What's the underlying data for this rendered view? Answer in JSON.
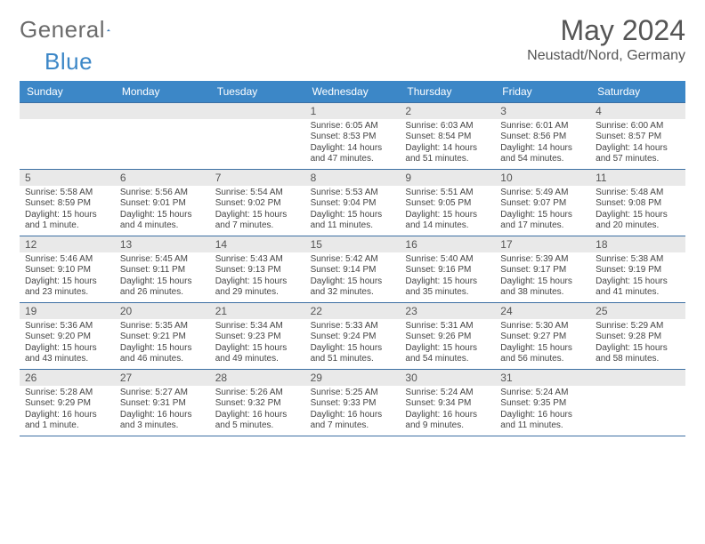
{
  "logo": {
    "word1": "General",
    "word2": "Blue",
    "word1_color": "#7a7a7a",
    "word2_color": "#3c87c7",
    "mark_color": "#2f6fb0"
  },
  "title": "May 2024",
  "location": "Neustadt/Nord, Germany",
  "colors": {
    "header_bar": "#3c87c7",
    "row_border": "#3c6fa3",
    "daynum_bg": "#e9e9e9",
    "text": "#444444",
    "title_color": "#555555"
  },
  "weekdays": [
    "Sunday",
    "Monday",
    "Tuesday",
    "Wednesday",
    "Thursday",
    "Friday",
    "Saturday"
  ],
  "grid": {
    "lead_blanks": 3,
    "days": [
      {
        "n": "1",
        "sunrise": "Sunrise: 6:05 AM",
        "sunset": "Sunset: 8:53 PM",
        "day1": "Daylight: 14 hours",
        "day2": "and 47 minutes."
      },
      {
        "n": "2",
        "sunrise": "Sunrise: 6:03 AM",
        "sunset": "Sunset: 8:54 PM",
        "day1": "Daylight: 14 hours",
        "day2": "and 51 minutes."
      },
      {
        "n": "3",
        "sunrise": "Sunrise: 6:01 AM",
        "sunset": "Sunset: 8:56 PM",
        "day1": "Daylight: 14 hours",
        "day2": "and 54 minutes."
      },
      {
        "n": "4",
        "sunrise": "Sunrise: 6:00 AM",
        "sunset": "Sunset: 8:57 PM",
        "day1": "Daylight: 14 hours",
        "day2": "and 57 minutes."
      },
      {
        "n": "5",
        "sunrise": "Sunrise: 5:58 AM",
        "sunset": "Sunset: 8:59 PM",
        "day1": "Daylight: 15 hours",
        "day2": "and 1 minute."
      },
      {
        "n": "6",
        "sunrise": "Sunrise: 5:56 AM",
        "sunset": "Sunset: 9:01 PM",
        "day1": "Daylight: 15 hours",
        "day2": "and 4 minutes."
      },
      {
        "n": "7",
        "sunrise": "Sunrise: 5:54 AM",
        "sunset": "Sunset: 9:02 PM",
        "day1": "Daylight: 15 hours",
        "day2": "and 7 minutes."
      },
      {
        "n": "8",
        "sunrise": "Sunrise: 5:53 AM",
        "sunset": "Sunset: 9:04 PM",
        "day1": "Daylight: 15 hours",
        "day2": "and 11 minutes."
      },
      {
        "n": "9",
        "sunrise": "Sunrise: 5:51 AM",
        "sunset": "Sunset: 9:05 PM",
        "day1": "Daylight: 15 hours",
        "day2": "and 14 minutes."
      },
      {
        "n": "10",
        "sunrise": "Sunrise: 5:49 AM",
        "sunset": "Sunset: 9:07 PM",
        "day1": "Daylight: 15 hours",
        "day2": "and 17 minutes."
      },
      {
        "n": "11",
        "sunrise": "Sunrise: 5:48 AM",
        "sunset": "Sunset: 9:08 PM",
        "day1": "Daylight: 15 hours",
        "day2": "and 20 minutes."
      },
      {
        "n": "12",
        "sunrise": "Sunrise: 5:46 AM",
        "sunset": "Sunset: 9:10 PM",
        "day1": "Daylight: 15 hours",
        "day2": "and 23 minutes."
      },
      {
        "n": "13",
        "sunrise": "Sunrise: 5:45 AM",
        "sunset": "Sunset: 9:11 PM",
        "day1": "Daylight: 15 hours",
        "day2": "and 26 minutes."
      },
      {
        "n": "14",
        "sunrise": "Sunrise: 5:43 AM",
        "sunset": "Sunset: 9:13 PM",
        "day1": "Daylight: 15 hours",
        "day2": "and 29 minutes."
      },
      {
        "n": "15",
        "sunrise": "Sunrise: 5:42 AM",
        "sunset": "Sunset: 9:14 PM",
        "day1": "Daylight: 15 hours",
        "day2": "and 32 minutes."
      },
      {
        "n": "16",
        "sunrise": "Sunrise: 5:40 AM",
        "sunset": "Sunset: 9:16 PM",
        "day1": "Daylight: 15 hours",
        "day2": "and 35 minutes."
      },
      {
        "n": "17",
        "sunrise": "Sunrise: 5:39 AM",
        "sunset": "Sunset: 9:17 PM",
        "day1": "Daylight: 15 hours",
        "day2": "and 38 minutes."
      },
      {
        "n": "18",
        "sunrise": "Sunrise: 5:38 AM",
        "sunset": "Sunset: 9:19 PM",
        "day1": "Daylight: 15 hours",
        "day2": "and 41 minutes."
      },
      {
        "n": "19",
        "sunrise": "Sunrise: 5:36 AM",
        "sunset": "Sunset: 9:20 PM",
        "day1": "Daylight: 15 hours",
        "day2": "and 43 minutes."
      },
      {
        "n": "20",
        "sunrise": "Sunrise: 5:35 AM",
        "sunset": "Sunset: 9:21 PM",
        "day1": "Daylight: 15 hours",
        "day2": "and 46 minutes."
      },
      {
        "n": "21",
        "sunrise": "Sunrise: 5:34 AM",
        "sunset": "Sunset: 9:23 PM",
        "day1": "Daylight: 15 hours",
        "day2": "and 49 minutes."
      },
      {
        "n": "22",
        "sunrise": "Sunrise: 5:33 AM",
        "sunset": "Sunset: 9:24 PM",
        "day1": "Daylight: 15 hours",
        "day2": "and 51 minutes."
      },
      {
        "n": "23",
        "sunrise": "Sunrise: 5:31 AM",
        "sunset": "Sunset: 9:26 PM",
        "day1": "Daylight: 15 hours",
        "day2": "and 54 minutes."
      },
      {
        "n": "24",
        "sunrise": "Sunrise: 5:30 AM",
        "sunset": "Sunset: 9:27 PM",
        "day1": "Daylight: 15 hours",
        "day2": "and 56 minutes."
      },
      {
        "n": "25",
        "sunrise": "Sunrise: 5:29 AM",
        "sunset": "Sunset: 9:28 PM",
        "day1": "Daylight: 15 hours",
        "day2": "and 58 minutes."
      },
      {
        "n": "26",
        "sunrise": "Sunrise: 5:28 AM",
        "sunset": "Sunset: 9:29 PM",
        "day1": "Daylight: 16 hours",
        "day2": "and 1 minute."
      },
      {
        "n": "27",
        "sunrise": "Sunrise: 5:27 AM",
        "sunset": "Sunset: 9:31 PM",
        "day1": "Daylight: 16 hours",
        "day2": "and 3 minutes."
      },
      {
        "n": "28",
        "sunrise": "Sunrise: 5:26 AM",
        "sunset": "Sunset: 9:32 PM",
        "day1": "Daylight: 16 hours",
        "day2": "and 5 minutes."
      },
      {
        "n": "29",
        "sunrise": "Sunrise: 5:25 AM",
        "sunset": "Sunset: 9:33 PM",
        "day1": "Daylight: 16 hours",
        "day2": "and 7 minutes."
      },
      {
        "n": "30",
        "sunrise": "Sunrise: 5:24 AM",
        "sunset": "Sunset: 9:34 PM",
        "day1": "Daylight: 16 hours",
        "day2": "and 9 minutes."
      },
      {
        "n": "31",
        "sunrise": "Sunrise: 5:24 AM",
        "sunset": "Sunset: 9:35 PM",
        "day1": "Daylight: 16 hours",
        "day2": "and 11 minutes."
      }
    ],
    "trail_blanks": 1
  }
}
